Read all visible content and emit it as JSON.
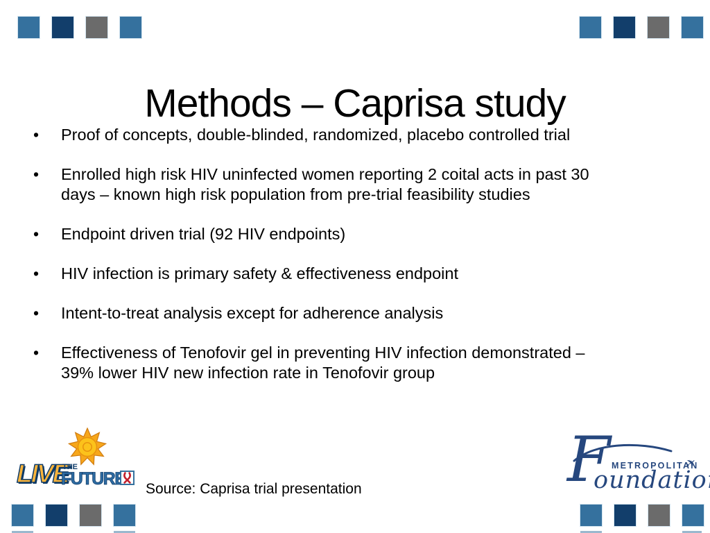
{
  "slide": {
    "title": "Methods – Caprisa study",
    "bullet_char": "•",
    "bullets": [
      "Proof of concepts, double-blinded, randomized, placebo controlled trial",
      "Enrolled high risk HIV uninfected women reporting 2 coital acts in past 30\ndays – known high risk population from pre-trial feasibility studies",
      "Endpoint driven trial (92 HIV endpoints)",
      "HIV infection is primary safety & effectiveness endpoint",
      "Intent-to-treat analysis except for adherence analysis",
      "Effectiveness of Tenofovir gel in preventing HIV infection demonstrated –\n39% lower HIV new infection rate in Tenofovir group"
    ],
    "source": "Source: Caprisa trial presentation"
  },
  "logos": {
    "live_future": {
      "live": "LIVE",
      "the": "THE",
      "future": "FUTURE"
    },
    "metropolitan_foundation": {
      "metropolitan": "METROPOLITAN",
      "foundation_initial": "F",
      "foundation_rest": "oundation",
      "plane_glyph": "✈"
    }
  },
  "decor": {
    "square_colors": [
      "#35719e",
      "#123e6b",
      "#6b6b6b",
      "#35719e"
    ],
    "accent_blue": "#35719e",
    "accent_navy": "#123e6b",
    "accent_gray": "#6b6b6b",
    "logo_navy": "#26477e",
    "live_orange": "#f9b43c",
    "future_blue": "#2e6ca3",
    "ribbon_red": "#c2202c",
    "sun_orange": "#f7a71b"
  }
}
